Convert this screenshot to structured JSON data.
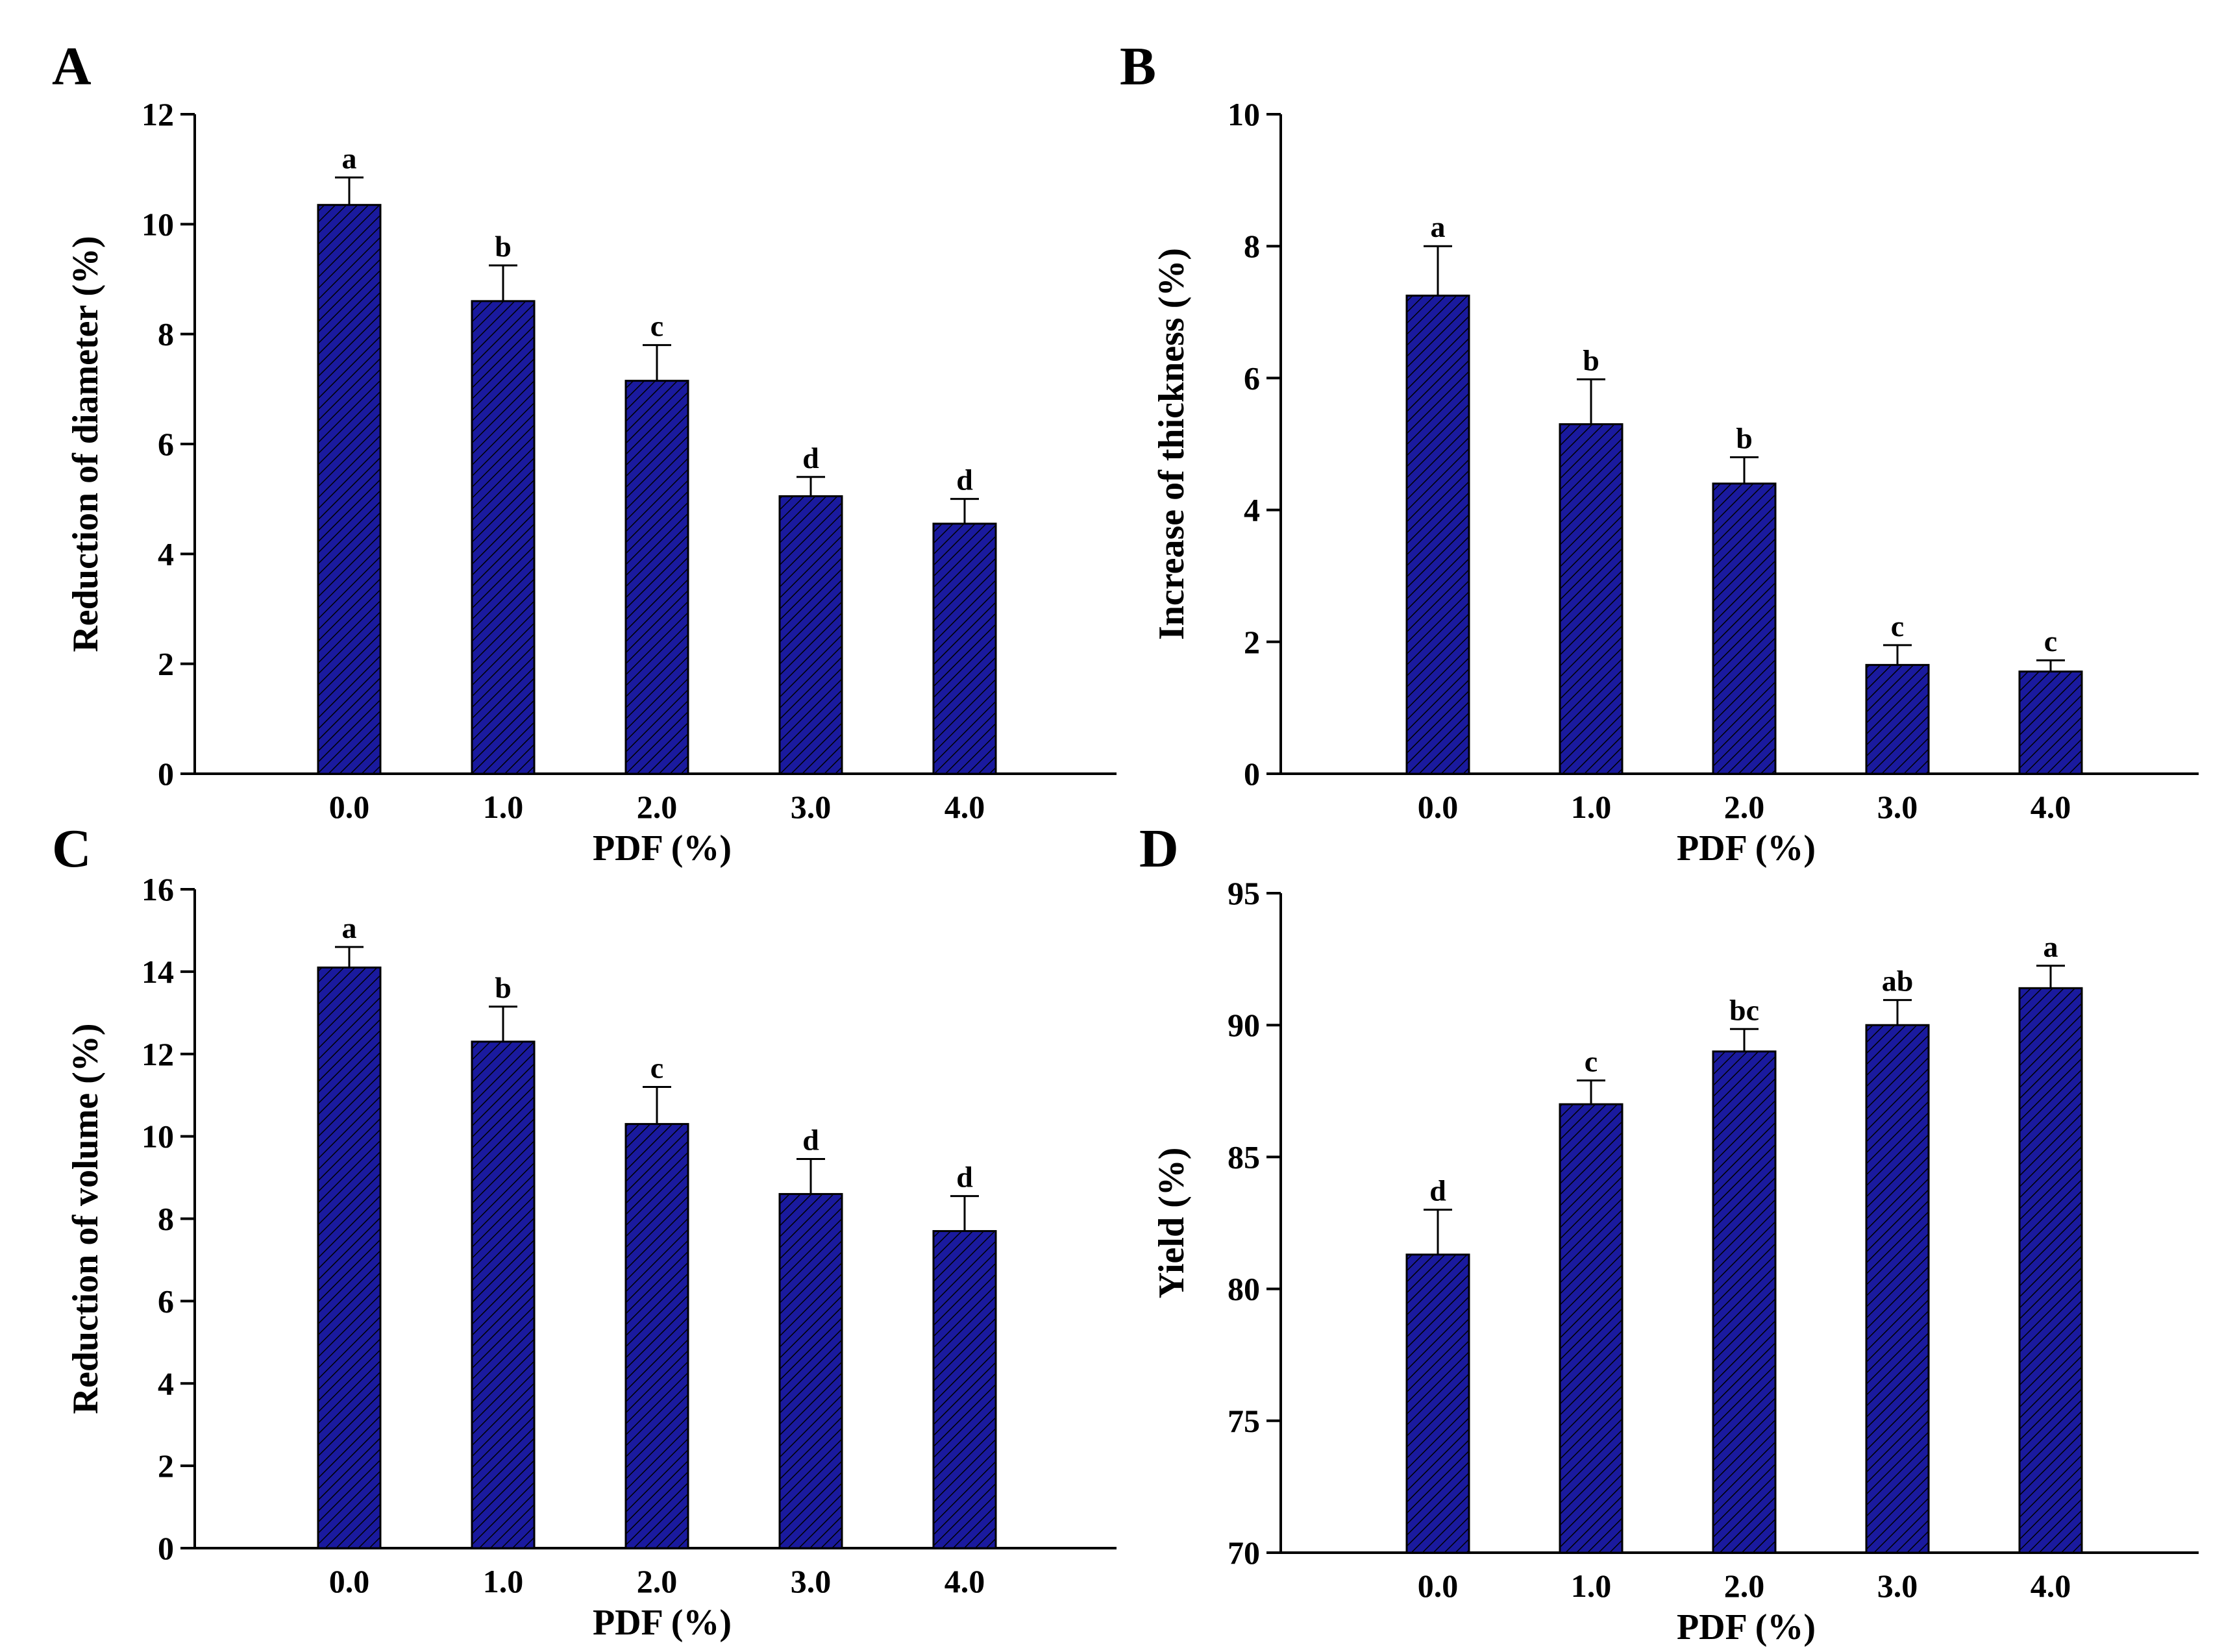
{
  "bar_color": "#1a1a9e",
  "chart_data": [
    {
      "type": "bar",
      "panel": "A",
      "categories": [
        "0.0",
        "1.0",
        "2.0",
        "3.0",
        "4.0"
      ],
      "values": [
        10.35,
        8.6,
        7.15,
        5.05,
        4.55
      ],
      "errors": [
        0.5,
        0.65,
        0.65,
        0.35,
        0.45
      ],
      "significance": [
        "a",
        "b",
        "c",
        "d",
        "d"
      ],
      "xlabel": "PDF (%)",
      "ylabel": "Reduction of diameter (%)",
      "ylim": [
        0,
        12
      ],
      "yticks": [
        0,
        2,
        4,
        6,
        8,
        10,
        12
      ]
    },
    {
      "type": "bar",
      "panel": "B",
      "categories": [
        "0.0",
        "1.0",
        "2.0",
        "3.0",
        "4.0"
      ],
      "values": [
        7.25,
        5.3,
        4.4,
        1.65,
        1.55
      ],
      "errors": [
        0.75,
        0.68,
        0.4,
        0.3,
        0.17
      ],
      "significance": [
        "a",
        "b",
        "b",
        "c",
        "c"
      ],
      "xlabel": "PDF (%)",
      "ylabel": "Increase of thickness (%)",
      "ylim": [
        0,
        10
      ],
      "yticks": [
        0,
        2,
        4,
        6,
        8,
        10
      ]
    },
    {
      "type": "bar",
      "panel": "C",
      "categories": [
        "0.0",
        "1.0",
        "2.0",
        "3.0",
        "4.0"
      ],
      "values": [
        14.1,
        12.3,
        10.3,
        8.6,
        7.7
      ],
      "errors": [
        0.5,
        0.85,
        0.9,
        0.85,
        0.85
      ],
      "significance": [
        "a",
        "b",
        "c",
        "d",
        "d"
      ],
      "xlabel": "PDF (%)",
      "ylabel": "Reduction of volume (%)",
      "ylim": [
        0,
        16
      ],
      "yticks": [
        0,
        2,
        4,
        6,
        8,
        10,
        12,
        14,
        16
      ]
    },
    {
      "type": "bar",
      "panel": "D",
      "categories": [
        "0.0",
        "1.0",
        "2.0",
        "3.0",
        "4.0"
      ],
      "values": [
        81.3,
        87.0,
        89.0,
        90.0,
        91.4
      ],
      "errors": [
        1.7,
        0.9,
        0.85,
        0.95,
        0.85
      ],
      "significance": [
        "d",
        "c",
        "bc",
        "ab",
        "a"
      ],
      "xlabel": "PDF (%)",
      "ylabel": "Yield (%)",
      "ylim": [
        70,
        95
      ],
      "yticks": [
        70,
        75,
        80,
        85,
        90,
        95
      ]
    }
  ]
}
